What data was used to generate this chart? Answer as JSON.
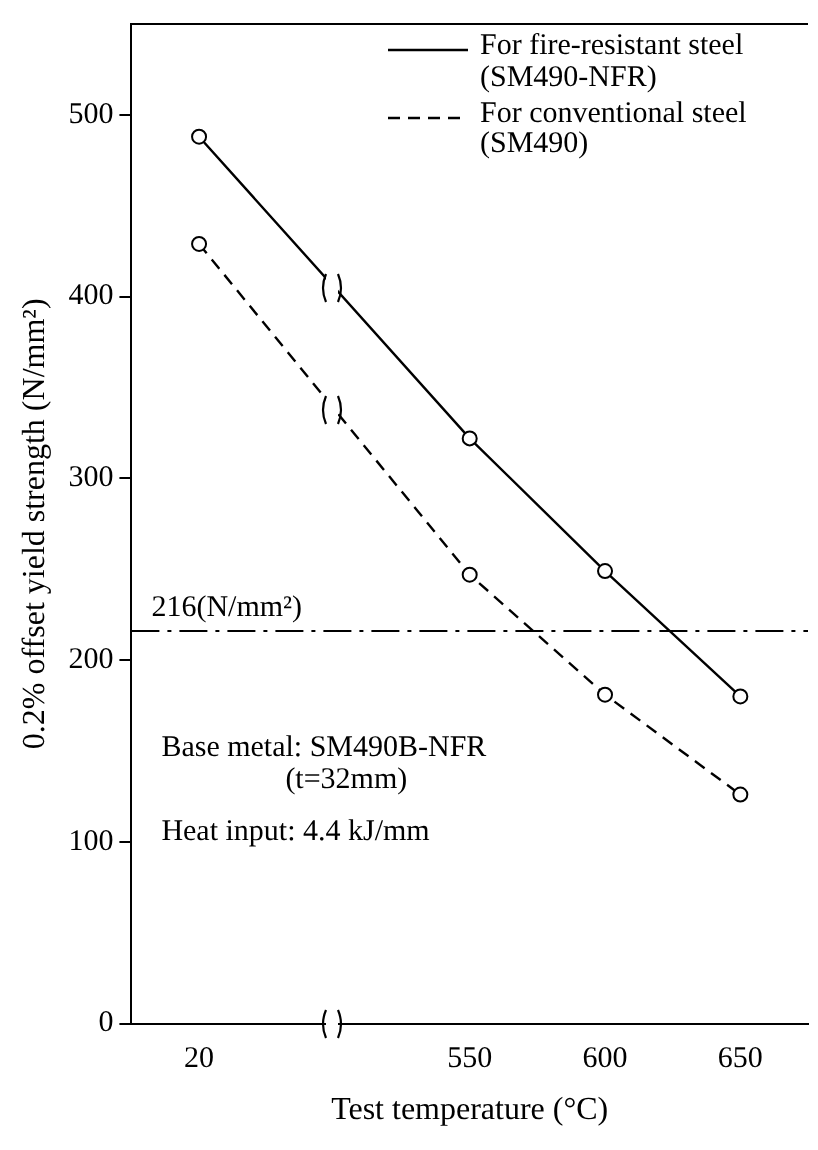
{
  "chart_data": {
    "type": "line",
    "xlabel": "Test temperature (°C)",
    "ylabel": "0.2% offset yield strength (N/mm²)",
    "categories": [
      "20",
      null,
      "550",
      "600",
      "650"
    ],
    "series": [
      {
        "name": "For fire-resistant steel (SM490-NFR)",
        "color": "#000000",
        "line_style": "solid",
        "values": [
          488,
          null,
          322,
          249,
          180
        ]
      },
      {
        "name": "For conventional steel (SM490)",
        "color": "#000000",
        "line_style": "dashed",
        "values": [
          429,
          null,
          247,
          181,
          126
        ]
      }
    ],
    "ylim": [
      0,
      550
    ],
    "yticks": [
      0,
      100,
      200,
      300,
      400,
      500
    ],
    "ref_lines": [
      {
        "axis": "y",
        "value": 216,
        "label": "216(N/mm²)",
        "color": "#000000",
        "line_style": "dashdot"
      }
    ],
    "annotations": [
      "Base metal: SM490B-NFR\n(t=32mm)",
      "Heat input: 4.4 kJ/mm"
    ],
    "grid": false,
    "legend": "top right",
    "marker": "circle"
  }
}
